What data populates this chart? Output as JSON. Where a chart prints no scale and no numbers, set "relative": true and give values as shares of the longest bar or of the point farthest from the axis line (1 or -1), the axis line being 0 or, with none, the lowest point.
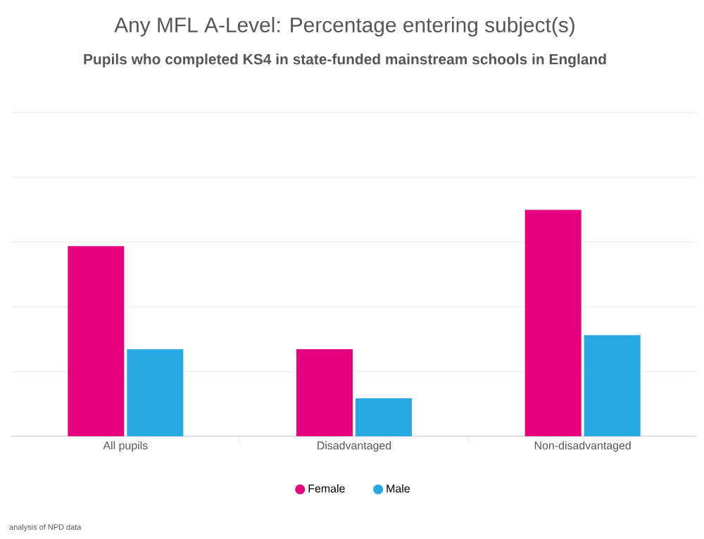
{
  "chart_data": {
    "type": "bar",
    "title": "Any MFL A-Level: Percentage entering subject(s)",
    "subtitle": "Pupils who completed KS4 in state-funded mainstream schools in England",
    "categories": [
      "All pupils",
      "Disadvantaged",
      "Non-disadvantaged"
    ],
    "series": [
      {
        "name": "Female",
        "color": "#e6007e",
        "values": [
          0.84,
          0.385,
          1
        ]
      },
      {
        "name": "Male",
        "color": "#29a9e1",
        "values": [
          0.385,
          0.168,
          0.447
        ]
      }
    ],
    "relative": true,
    "grid": "y",
    "legend": "bottom",
    "annotations": [
      "analysis of NPD data"
    ]
  }
}
